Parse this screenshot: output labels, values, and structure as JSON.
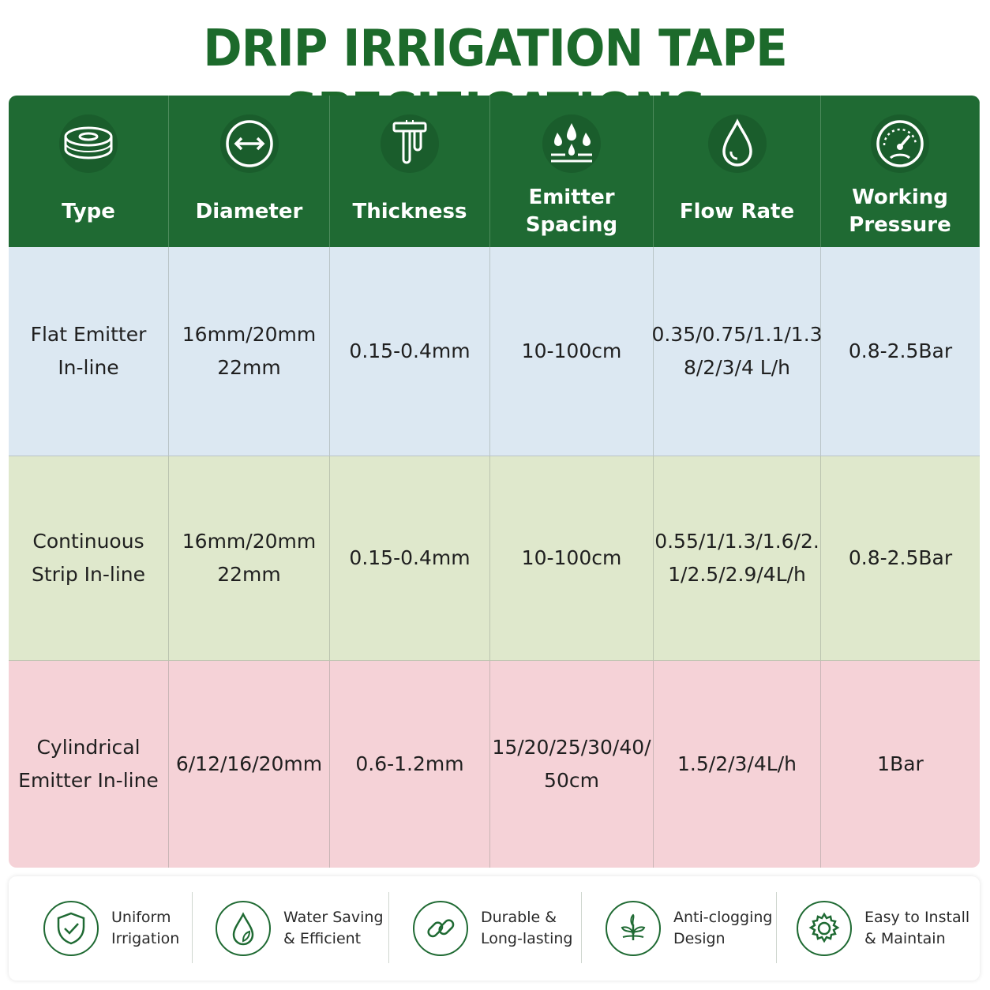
{
  "title": "DRIP IRRIGATION TAPE SPECIFICATIONS",
  "colors": {
    "header_green": "#1f6a33",
    "title_green": "#1c6a2b",
    "row_blue": "#dce8f2",
    "row_green": "#dfe8cc",
    "row_pink": "#f5d2d7"
  },
  "table": {
    "headers": [
      {
        "label": "Type",
        "icon": "tape-roll-icon"
      },
      {
        "label": "Diameter",
        "icon": "diameter-arrow-icon"
      },
      {
        "label": "Thickness",
        "icon": "caliper-icon"
      },
      {
        "label": "Emitter\nSpacing",
        "icon": "water-drops-icon"
      },
      {
        "label": "Flow Rate",
        "icon": "water-drop-icon"
      },
      {
        "label": "Working\nPressure",
        "icon": "pressure-gauge-icon"
      }
    ],
    "rows": [
      [
        "Flat Emitter\nIn-line",
        "16mm/20mm\n22mm",
        "0.15-0.4mm",
        "10-100cm",
        "0.35/0.75/1.1/1.3\n8/2/3/4 L/h",
        "0.8-2.5Bar"
      ],
      [
        "Continuous\nStrip In-line",
        "16mm/20mm\n22mm",
        "0.15-0.4mm",
        "10-100cm",
        "0.55/1/1.3/1.6/2.\n1/2.5/2.9/4L/h",
        "0.8-2.5Bar"
      ],
      [
        "Cylindrical\nEmitter In-line",
        "6/12/16/20mm",
        "0.6-1.2mm",
        "15/20/25/30/40/\n50cm",
        "1.5/2/3/4L/h",
        "1Bar"
      ]
    ]
  },
  "features": [
    {
      "label": "Uniform\nIrrigation",
      "icon": "shield-check-icon"
    },
    {
      "label": "Water Saving\n& Efficient",
      "icon": "water-leaf-icon"
    },
    {
      "label": "Durable &\nLong-lasting",
      "icon": "chain-link-icon"
    },
    {
      "label": "Anti-clogging\nDesign",
      "icon": "sprout-icon"
    },
    {
      "label": "Easy to Install\n& Maintain",
      "icon": "gear-icon"
    }
  ]
}
